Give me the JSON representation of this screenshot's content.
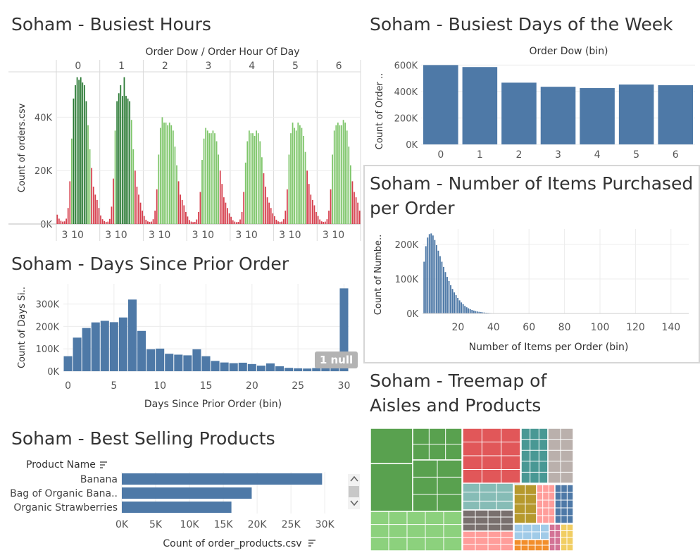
{
  "titles": {
    "busiest_hours": "Soham - Busiest Hours",
    "busiest_days": "Soham - Busiest Days of the Week",
    "items_per_order_line1": "Soham - Number of Items Purchased",
    "items_per_order_line2": "per Order",
    "days_since": "Soham - Days Since Prior Order",
    "best_selling": "Soham - Best Selling Products",
    "treemap_line1": "Soham - Treemap of",
    "treemap_line2": "Aisles and Products"
  },
  "colors": {
    "bar_blue": "#4e79a7",
    "grid": "#ececec",
    "axis_text": "#555555",
    "green_dark": "#2a7a34",
    "green_light": "#7fc66b",
    "red": "#d6404e",
    "treemap_green": "#59a14f",
    "treemap_red": "#e15759",
    "treemap_teal": "#499894",
    "treemap_gray": "#bab0ac"
  },
  "chart_data": [
    {
      "id": "busiest_hours",
      "type": "bar",
      "header": "Order Dow  /  Order Hour Of Day",
      "ylabel": "Count of orders.csv",
      "ylim": [
        0,
        57000
      ],
      "yticks": [
        0,
        20000,
        40000
      ],
      "ytick_labels": [
        "0K",
        "20K",
        "40K"
      ],
      "facets": [
        "0",
        "1",
        "2",
        "3",
        "4",
        "5",
        "6"
      ],
      "x_tick_labels": [
        "3",
        "10"
      ],
      "hours": [
        0,
        1,
        2,
        3,
        4,
        5,
        6,
        7,
        8,
        9,
        10,
        11,
        12,
        13,
        14,
        15,
        16,
        17,
        18,
        19,
        20,
        21,
        22,
        23
      ],
      "series": [
        {
          "name": "0",
          "values": [
            3500,
            2000,
            1200,
            900,
            1000,
            2000,
            6000,
            16000,
            32000,
            47000,
            52000,
            55000,
            54000,
            55000,
            53000,
            52000,
            46000,
            37000,
            28000,
            21000,
            14000,
            11000,
            9000,
            6000
          ]
        },
        {
          "name": "1",
          "values": [
            3200,
            1800,
            1100,
            800,
            900,
            1900,
            6500,
            17000,
            35000,
            46000,
            49000,
            52000,
            48000,
            55000,
            48000,
            47000,
            46000,
            39000,
            28000,
            20000,
            14000,
            11000,
            8000,
            5000
          ]
        },
        {
          "name": "2",
          "values": [
            3000,
            1600,
            1000,
            800,
            900,
            1800,
            5000,
            13000,
            26000,
            36000,
            40000,
            38000,
            38000,
            37000,
            38000,
            37000,
            35000,
            29000,
            22000,
            16000,
            11000,
            9000,
            7000,
            4500
          ]
        },
        {
          "name": "3",
          "values": [
            2800,
            1500,
            900,
            700,
            800,
            1700,
            4500,
            12000,
            24000,
            32000,
            36000,
            35000,
            34000,
            34000,
            35000,
            34000,
            31000,
            26000,
            20000,
            15000,
            10000,
            8000,
            6000,
            4000
          ]
        },
        {
          "name": "4",
          "values": [
            2700,
            1400,
            900,
            700,
            800,
            1700,
            4500,
            12000,
            23000,
            31000,
            35000,
            34000,
            34000,
            33000,
            35000,
            34000,
            31000,
            25000,
            19000,
            14000,
            10000,
            8000,
            6000,
            4000
          ]
        },
        {
          "name": "5",
          "values": [
            2900,
            1600,
            1000,
            800,
            900,
            1800,
            5000,
            13000,
            26000,
            34000,
            38000,
            36000,
            35000,
            38000,
            37000,
            36000,
            33000,
            27000,
            20000,
            15000,
            11000,
            9000,
            7000,
            4500
          ]
        },
        {
          "name": "6",
          "values": [
            3000,
            1700,
            1000,
            800,
            900,
            1800,
            5000,
            13000,
            26000,
            35000,
            37000,
            38000,
            37000,
            37000,
            39000,
            38000,
            35000,
            29000,
            22000,
            16000,
            12000,
            10000,
            8000,
            5000
          ]
        }
      ]
    },
    {
      "id": "busiest_days",
      "type": "bar",
      "xlabel_top": "Order Dow (bin)",
      "ylabel": "Count of Order ..",
      "categories": [
        "0",
        "1",
        "2",
        "3",
        "4",
        "5",
        "6"
      ],
      "values": [
        600000,
        585000,
        467000,
        436000,
        426000,
        453000,
        448000
      ],
      "ylim": [
        0,
        650000
      ],
      "yticks": [
        0,
        200000,
        400000,
        600000
      ],
      "ytick_labels": [
        "0K",
        "200K",
        "400K",
        "600K"
      ]
    },
    {
      "id": "items_per_order",
      "type": "bar",
      "xlabel": "Number of Items per Order (bin)",
      "ylabel": "Count of Numbe..",
      "xlim": [
        0,
        150
      ],
      "xticks": [
        20,
        40,
        60,
        80,
        100,
        120,
        140
      ],
      "ylim": [
        0,
        245000
      ],
      "yticks": [
        0,
        100000,
        200000
      ],
      "ytick_labels": [
        "0K",
        "100K",
        "200K"
      ],
      "x": [
        1,
        2,
        3,
        4,
        5,
        6,
        7,
        8,
        9,
        10,
        11,
        12,
        13,
        14,
        15,
        16,
        17,
        18,
        19,
        20,
        21,
        22,
        23,
        24,
        25,
        26,
        27,
        28,
        29,
        30,
        31,
        32,
        33,
        34,
        35,
        36,
        37,
        38,
        39,
        40,
        41,
        42,
        43,
        44,
        45
      ],
      "values": [
        150000,
        195000,
        220000,
        230000,
        232000,
        226000,
        213000,
        198000,
        182000,
        166000,
        150000,
        135000,
        120000,
        106000,
        94000,
        82000,
        71000,
        61000,
        53000,
        45000,
        38000,
        32000,
        27000,
        22000,
        18000,
        15000,
        12500,
        10200,
        8400,
        6900,
        5700,
        4700,
        3900,
        3200,
        2600,
        2100,
        1700,
        1400,
        1100,
        900,
        700,
        550,
        420,
        320,
        250
      ]
    },
    {
      "id": "days_since_prior",
      "type": "bar",
      "xlabel": "Days Since Prior Order (bin)",
      "ylabel": "Count of Days Si..",
      "categories": [
        0,
        1,
        2,
        3,
        4,
        5,
        6,
        7,
        8,
        9,
        10,
        11,
        12,
        13,
        14,
        15,
        16,
        17,
        18,
        19,
        20,
        21,
        22,
        23,
        24,
        25,
        26,
        27,
        28,
        29,
        30
      ],
      "values": [
        67000,
        150000,
        193000,
        218000,
        225000,
        219000,
        240000,
        320000,
        180000,
        98000,
        101000,
        78000,
        74000,
        71000,
        98000,
        67000,
        46000,
        39000,
        36000,
        38000,
        32000,
        25000,
        35000,
        22000,
        15000,
        13000,
        12000,
        14000,
        20000,
        24000,
        370000
      ],
      "ylim": [
        0,
        390000
      ],
      "yticks": [
        0,
        100000,
        200000,
        300000
      ],
      "ytick_labels": [
        "0K",
        "100K",
        "200K",
        "300K"
      ],
      "xticks": [
        0,
        5,
        10,
        15,
        20,
        25,
        30
      ],
      "annotation": "1 null"
    },
    {
      "id": "best_selling",
      "type": "bar",
      "orientation": "horizontal",
      "header": "Product Name",
      "xlabel": "Count of order_products.csv",
      "categories": [
        "Banana",
        "Bag of Organic Bana..",
        "Organic Strawberries"
      ],
      "values": [
        29600,
        19200,
        16200
      ],
      "xlim": [
        0,
        33000
      ],
      "xticks": [
        0,
        5000,
        10000,
        15000,
        20000,
        25000,
        30000
      ],
      "xtick_labels": [
        "0K",
        "5K",
        "10K",
        "15K",
        "20K",
        "25K",
        "30K"
      ]
    }
  ]
}
